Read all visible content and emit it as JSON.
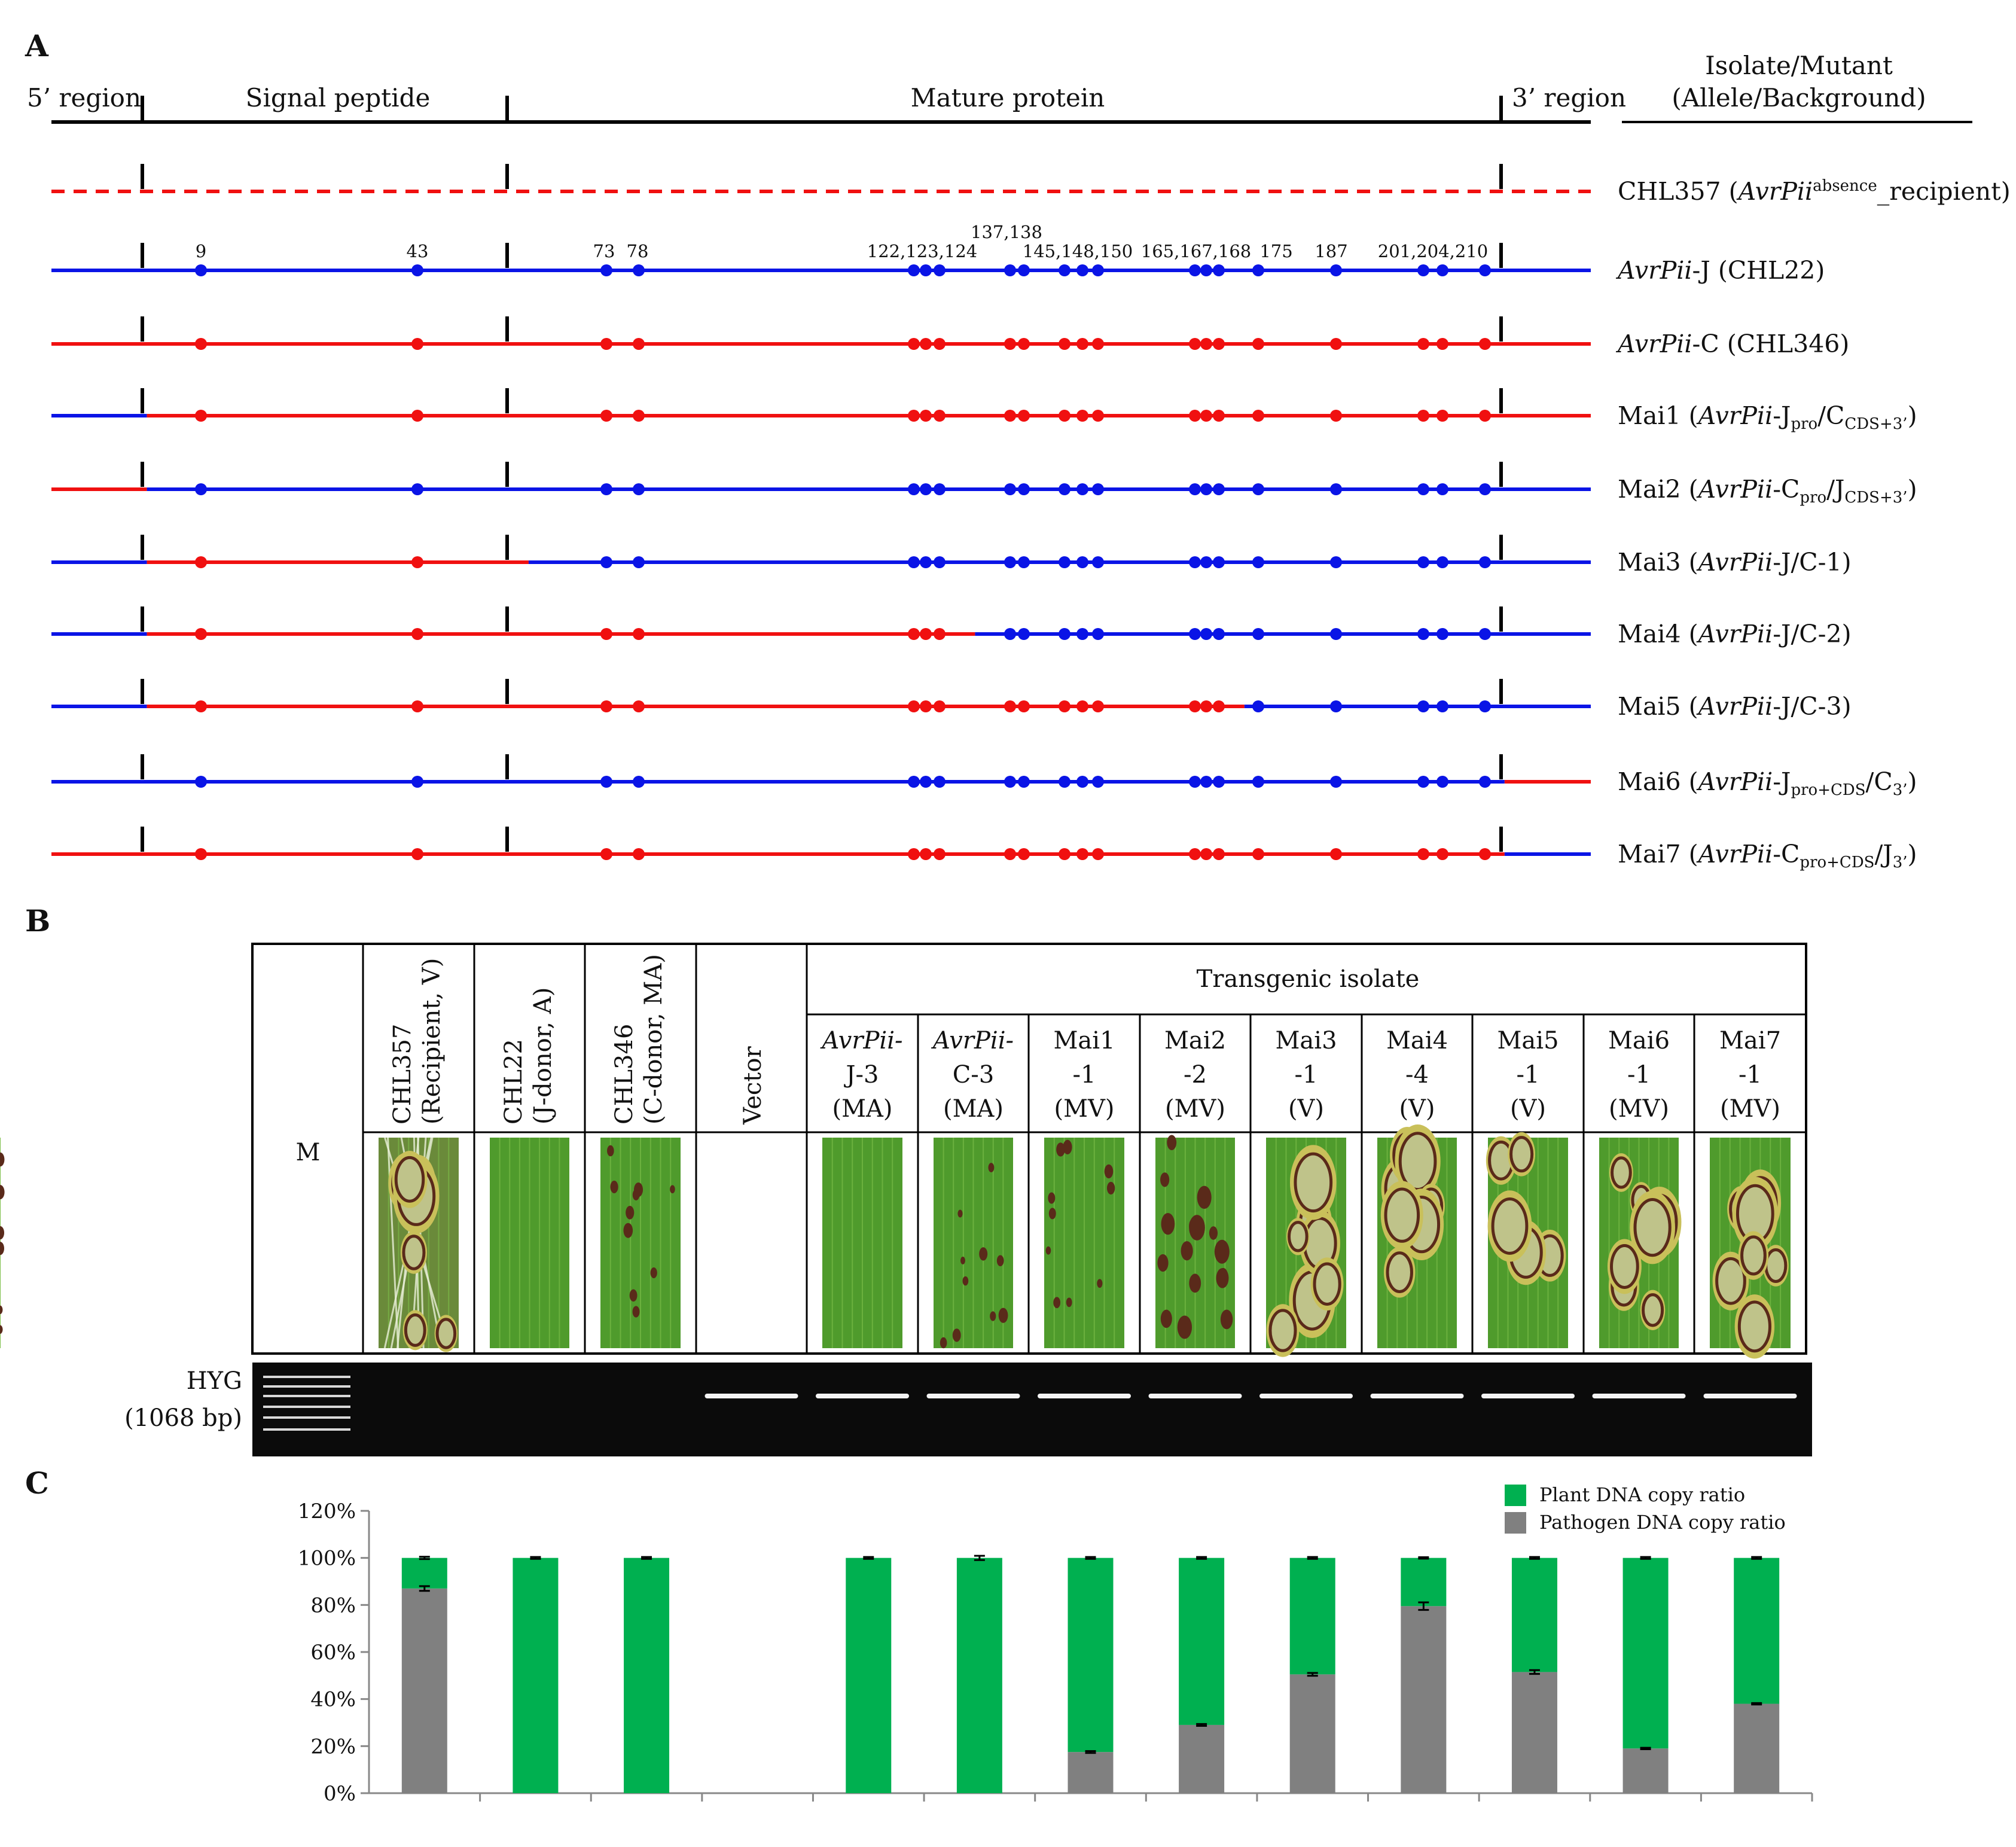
{
  "figure": {
    "panel_a": {
      "label": "A",
      "regions": [
        "5’ region",
        "Signal peptide",
        "Mature protein",
        "3’ region"
      ],
      "column_header": [
        "Isolate/Mutant",
        "(Allele/Background)"
      ],
      "site_labels": [
        "9",
        "43",
        "73",
        "78",
        "122,123,124",
        "137,138",
        "145,148,150",
        "165,167,168",
        "175",
        "187",
        "201,204,210"
      ],
      "sites": [
        9,
        43,
        73,
        78,
        122,
        123,
        124,
        137,
        138,
        145,
        148,
        150,
        165,
        167,
        168,
        175,
        187,
        201,
        204,
        210
      ],
      "colors": {
        "J": "#0a14e6",
        "C": "#f01010",
        "boundary": "#000000"
      },
      "rows": [
        {
          "name": "CHL357",
          "label_rich": [
            {
              "t": "CHL357 ("
            },
            {
              "t": "AvrPii",
              "i": 1
            },
            {
              "t": "absence",
              "sup": 1
            },
            {
              "t": "_recipient)"
            }
          ],
          "segments": [],
          "dashed": true
        },
        {
          "name": "AvrPii-J",
          "label_rich": [
            {
              "t": "AvrPii",
              "i": 1
            },
            {
              "t": "-J (CHL22)"
            }
          ],
          "segments": [
            {
              "from": 0,
              "to": 1,
              "c": "J"
            }
          ]
        },
        {
          "name": "AvrPii-C",
          "label_rich": [
            {
              "t": "AvrPii",
              "i": 1
            },
            {
              "t": "-C (CHL346)"
            }
          ],
          "segments": [
            {
              "from": 0,
              "to": 1,
              "c": "C"
            }
          ]
        },
        {
          "name": "Mai1",
          "label_rich": [
            {
              "t": "Mai1 ("
            },
            {
              "t": "AvrPii",
              "i": 1
            },
            {
              "t": "-J"
            },
            {
              "t": "pro",
              "sub": 1
            },
            {
              "t": "/C"
            },
            {
              "t": "CDS+3’",
              "sub": 1
            },
            {
              "t": ")"
            }
          ],
          "segments": [
            {
              "from": 0,
              "to": 0.062,
              "c": "J"
            },
            {
              "from": 0.062,
              "to": 1,
              "c": "C"
            }
          ]
        },
        {
          "name": "Mai2",
          "label_rich": [
            {
              "t": "Mai2 ("
            },
            {
              "t": "AvrPii",
              "i": 1
            },
            {
              "t": "-C"
            },
            {
              "t": "pro",
              "sub": 1
            },
            {
              "t": "/J"
            },
            {
              "t": "CDS+3’",
              "sub": 1
            },
            {
              "t": ")"
            }
          ],
          "segments": [
            {
              "from": 0,
              "to": 0.062,
              "c": "C"
            },
            {
              "from": 0.062,
              "to": 1,
              "c": "J"
            }
          ]
        },
        {
          "name": "Mai3",
          "label_rich": [
            {
              "t": "Mai3 ("
            },
            {
              "t": "AvrPii",
              "i": 1
            },
            {
              "t": "-J/C-1)"
            }
          ],
          "segments": [
            {
              "from": 0,
              "to": 0.062,
              "c": "J"
            },
            {
              "from": 0.062,
              "to": 0.31,
              "c": "C"
            },
            {
              "from": 0.31,
              "to": 1,
              "c": "J"
            }
          ]
        },
        {
          "name": "Mai4",
          "label_rich": [
            {
              "t": "Mai4 ("
            },
            {
              "t": "AvrPii",
              "i": 1
            },
            {
              "t": "-J/C-2)"
            }
          ],
          "segments": [
            {
              "from": 0,
              "to": 0.062,
              "c": "J"
            },
            {
              "from": 0.062,
              "to": 0.6,
              "c": "C"
            },
            {
              "from": 0.6,
              "to": 1,
              "c": "J"
            }
          ]
        },
        {
          "name": "Mai5",
          "label_rich": [
            {
              "t": "Mai5 ("
            },
            {
              "t": "AvrPii",
              "i": 1
            },
            {
              "t": "-J/C-3)"
            }
          ],
          "segments": [
            {
              "from": 0,
              "to": 0.062,
              "c": "J"
            },
            {
              "from": 0.062,
              "to": 0.775,
              "c": "C"
            },
            {
              "from": 0.775,
              "to": 1,
              "c": "J"
            }
          ]
        },
        {
          "name": "Mai6",
          "label_rich": [
            {
              "t": "Mai6 ("
            },
            {
              "t": "AvrPii",
              "i": 1
            },
            {
              "t": "-J"
            },
            {
              "t": "pro+CDS",
              "sub": 1
            },
            {
              "t": "/C"
            },
            {
              "t": "3’",
              "sub": 1
            },
            {
              "t": ")"
            }
          ],
          "segments": [
            {
              "from": 0,
              "to": 0.944,
              "c": "J"
            },
            {
              "from": 0.944,
              "to": 1,
              "c": "C"
            }
          ]
        },
        {
          "name": "Mai7",
          "label_rich": [
            {
              "t": "Mai7 ("
            },
            {
              "t": "AvrPii",
              "i": 1
            },
            {
              "t": "-C"
            },
            {
              "t": "pro+CDS",
              "sub": 1
            },
            {
              "t": "/J"
            },
            {
              "t": "3’",
              "sub": 1
            },
            {
              "t": ")"
            }
          ],
          "segments": [
            {
              "from": 0,
              "to": 0.944,
              "c": "C"
            },
            {
              "from": 0.944,
              "to": 1,
              "c": "J"
            }
          ]
        }
      ]
    },
    "panel_b": {
      "label": "B",
      "marker_label": "M",
      "group_header": "Transgenic isolate",
      "rotated_labels": [
        [
          "CHL357",
          "(Recipient, V)"
        ],
        [
          "CHL22",
          "(J-donor, A)"
        ],
        [
          "CHL346",
          "(C-donor, MA)"
        ],
        [
          "Vector"
        ]
      ],
      "columns": [
        {
          "rich": [
            [
              {
                "t": "AvrPii-",
                "i": 1
              }
            ],
            [
              {
                "t": "J-3"
              }
            ],
            [
              {
                "t": "(MA)"
              }
            ]
          ],
          "lesions": 0
        },
        {
          "rich": [
            [
              {
                "t": "AvrPii-",
                "i": 1
              }
            ],
            [
              {
                "t": "C-3"
              }
            ],
            [
              {
                "t": "(MA)"
              }
            ]
          ],
          "lesions": 1
        },
        {
          "rich": [
            [
              {
                "t": "Mai1"
              }
            ],
            [
              {
                "t": "-1"
              }
            ],
            [
              {
                "t": "(MV)"
              }
            ]
          ],
          "lesions": 1
        },
        {
          "rich": [
            [
              {
                "t": "Mai2"
              }
            ],
            [
              {
                "t": "-2"
              }
            ],
            [
              {
                "t": "(MV)"
              }
            ]
          ],
          "lesions": 2
        },
        {
          "rich": [
            [
              {
                "t": "Mai3"
              }
            ],
            [
              {
                "t": "-1"
              }
            ],
            [
              {
                "t": "(V)"
              }
            ]
          ],
          "lesions": 3
        },
        {
          "rich": [
            [
              {
                "t": "Mai4"
              }
            ],
            [
              {
                "t": "-4"
              }
            ],
            [
              {
                "t": "(V)"
              }
            ]
          ],
          "lesions": 3
        },
        {
          "rich": [
            [
              {
                "t": "Mai5"
              }
            ],
            [
              {
                "t": "-1"
              }
            ],
            [
              {
                "t": "(V)"
              }
            ]
          ],
          "lesions": 3
        },
        {
          "rich": [
            [
              {
                "t": "Mai6"
              }
            ],
            [
              {
                "t": "-1"
              }
            ],
            [
              {
                "t": "(MV)"
              }
            ]
          ],
          "lesions": 3
        },
        {
          "rich": [
            [
              {
                "t": "Mai7"
              }
            ],
            [
              {
                "t": "-1"
              }
            ],
            [
              {
                "t": "(MV)"
              }
            ]
          ],
          "lesions": 3
        }
      ],
      "control_lesions": [
        3,
        0,
        1
      ],
      "gel_label": [
        "HYG",
        "(1068 bp)"
      ],
      "gel_bands": [
        false,
        false,
        false,
        true,
        true,
        true,
        true,
        true,
        true,
        true,
        true,
        true,
        true
      ]
    }
  },
  "chart_data": {
    "type": "bar",
    "stacked": true,
    "panel_label": "C",
    "categories": [
      "CHL357",
      "CHL22",
      "CHL346",
      "Vector",
      "AvrPii-J-3",
      "AvrPii-C-3",
      "Mai1-1",
      "Mai2-2",
      "Mai3-1",
      "Mai4-4",
      "Mai5-1",
      "Mai6-1",
      "Mai7-1"
    ],
    "series": [
      {
        "name": "Plant DNA copy ratio",
        "color": "#00b050",
        "values": [
          13,
          100,
          100,
          null,
          100,
          100,
          82.5,
          71,
          49.5,
          20.5,
          48.5,
          81,
          62
        ]
      },
      {
        "name": "Pathogen DNA copy ratio",
        "color": "#808080",
        "values": [
          87,
          0,
          0,
          null,
          0,
          0,
          17.5,
          29,
          50.5,
          79.5,
          51.5,
          19,
          38
        ]
      }
    ],
    "error_bars": {
      "pathogen_top": [
        1.0,
        0,
        0,
        null,
        0,
        0,
        0.4,
        0.4,
        0.6,
        1.6,
        0.8,
        0.3,
        0.3
      ],
      "total": [
        0.5,
        0.4,
        0.4,
        null,
        0.4,
        0.9,
        0.4,
        0.4,
        0.4,
        0.3,
        0.4,
        0.4,
        0.4
      ]
    },
    "yticks": [
      "0%",
      "20%",
      "40%",
      "60%",
      "80%",
      "100%",
      "120%"
    ],
    "ylim": [
      0,
      120
    ],
    "legend_position": "top-right",
    "xlabel": "",
    "ylabel": ""
  }
}
